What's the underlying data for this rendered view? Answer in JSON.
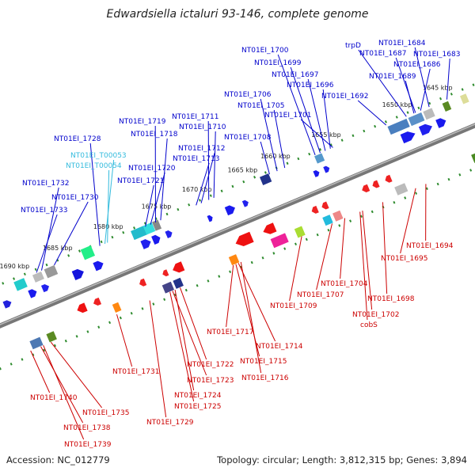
{
  "title": "Edwardsiella ictaluri 93-146, complete genome",
  "accession_text": "Accession: NC_012779",
  "topology_text": "Topology: circular; Length: 3,812,315 bp; Genes: 3,894",
  "colors": {
    "upper_label": "#0000cc",
    "lower_label": "#cc0000",
    "rna_label": "#33bbdd",
    "backbone": "#777777",
    "ruler_dash": "#2e8b2e"
  },
  "kbp_ticks": [
    {
      "label": "1645 kbp",
      "pos": 0.93
    },
    {
      "label": "1650 kbp",
      "pos": 0.85
    },
    {
      "label": "1655 kbp",
      "pos": 0.71
    },
    {
      "label": "1660 kbp",
      "pos": 0.61
    },
    {
      "label": "1665 kbp",
      "pos": 0.545
    },
    {
      "label": "1670 kbp",
      "pos": 0.455
    },
    {
      "label": "1675 kbp",
      "pos": 0.375
    },
    {
      "label": "1680 kbp",
      "pos": 0.28
    },
    {
      "label": "1685 kbp",
      "pos": 0.18
    },
    {
      "label": "1690 kbp",
      "pos": 0.095
    }
  ],
  "upper_labels": [
    {
      "text": "trpD",
      "pos": 0.86,
      "type": "gene"
    },
    {
      "text": "NT01EI_1684",
      "pos": 0.905,
      "type": "gene"
    },
    {
      "text": "NT01EI_1683",
      "pos": 0.94,
      "type": "gene"
    },
    {
      "text": "NT01EI_1687",
      "pos": 0.878,
      "type": "gene"
    },
    {
      "text": "NT01EI_1686",
      "pos": 0.888,
      "type": "gene"
    },
    {
      "text": "NT01EI_1689",
      "pos": 0.875,
      "type": "gene"
    },
    {
      "text": "NT01EI_1692",
      "pos": 0.82,
      "type": "gene"
    },
    {
      "text": "NT01EI_1700",
      "pos": 0.68,
      "type": "gene"
    },
    {
      "text": "NT01EI_1699",
      "pos": 0.69,
      "type": "gene"
    },
    {
      "text": "NT01EI_1697",
      "pos": 0.7,
      "type": "gene"
    },
    {
      "text": "NT01EI_1696",
      "pos": 0.71,
      "type": "gene"
    },
    {
      "text": "NT01EI_1701",
      "pos": 0.715,
      "type": "gene"
    },
    {
      "text": "NT01EI_1706",
      "pos": 0.605,
      "type": "gene"
    },
    {
      "text": "NT01EI_1705",
      "pos": 0.62,
      "type": "gene"
    },
    {
      "text": "NT01EI_1708",
      "pos": 0.59,
      "type": "gene"
    },
    {
      "text": "NT01EI_1711",
      "pos": 0.47,
      "type": "gene"
    },
    {
      "text": "NT01EI_1710",
      "pos": 0.48,
      "type": "gene"
    },
    {
      "text": "NT01EI_1712",
      "pos": 0.455,
      "type": "gene"
    },
    {
      "text": "NT01EI_1713",
      "pos": 0.445,
      "type": "gene"
    },
    {
      "text": "NT01EI_1719",
      "pos": 0.365,
      "type": "gene"
    },
    {
      "text": "NT01EI_1718",
      "pos": 0.375,
      "type": "gene"
    },
    {
      "text": "NT01EI_1720",
      "pos": 0.355,
      "type": "gene"
    },
    {
      "text": "NT01EI_1721",
      "pos": 0.345,
      "type": "gene"
    },
    {
      "text": "NT01EI_1728",
      "pos": 0.255,
      "type": "gene"
    },
    {
      "text": "NT01EI_T00053",
      "pos": 0.265,
      "type": "rna"
    },
    {
      "text": "NT01EI_T00054",
      "pos": 0.27,
      "type": "rna"
    },
    {
      "text": "NT01EI_1732",
      "pos": 0.14,
      "type": "gene"
    },
    {
      "text": "NT01EI_1730",
      "pos": 0.165,
      "type": "gene"
    },
    {
      "text": "NT01EI_1733",
      "pos": 0.13,
      "type": "gene"
    }
  ],
  "lower_labels": [
    {
      "text": "NT01EI_1694",
      "pos": 0.845
    },
    {
      "text": "NT01EI_1695",
      "pos": 0.825
    },
    {
      "text": "NT01EI_1698",
      "pos": 0.76
    },
    {
      "text": "NT01EI_1702",
      "pos": 0.72
    },
    {
      "text": "cobS",
      "pos": 0.715
    },
    {
      "text": "NT01EI_1704",
      "pos": 0.685
    },
    {
      "text": "NT01EI_1707",
      "pos": 0.66
    },
    {
      "text": "NT01EI_1709",
      "pos": 0.6
    },
    {
      "text": "NT01EI_1717",
      "pos": 0.465
    },
    {
      "text": "NT01EI_1714",
      "pos": 0.475
    },
    {
      "text": "NT01EI_1715",
      "pos": 0.47
    },
    {
      "text": "NT01EI_1716",
      "pos": 0.48
    },
    {
      "text": "NT01EI_1722",
      "pos": 0.36
    },
    {
      "text": "NT01EI_1723",
      "pos": 0.345
    },
    {
      "text": "NT01EI_1724",
      "pos": 0.35
    },
    {
      "text": "NT01EI_1725",
      "pos": 0.34
    },
    {
      "text": "NT01EI_1729",
      "pos": 0.3
    },
    {
      "text": "NT01EI_1731",
      "pos": 0.235
    },
    {
      "text": "NT01EI_1735",
      "pos": 0.105
    },
    {
      "text": "NT01EI_1740",
      "pos": 0.065
    },
    {
      "text": "NT01EI_1738",
      "pos": 0.085
    },
    {
      "text": "NT01EI_1739",
      "pos": 0.09
    }
  ]
}
